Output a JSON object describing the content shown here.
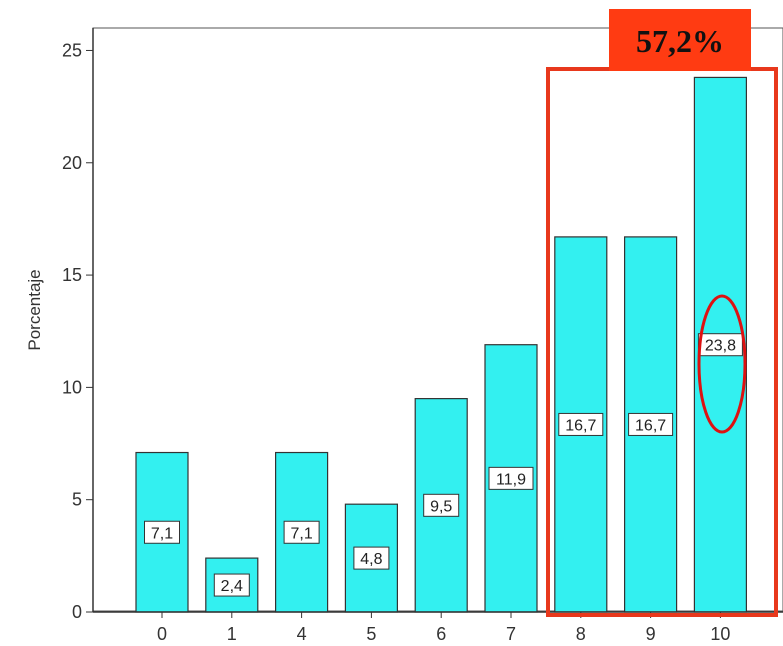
{
  "chart_data": {
    "type": "bar",
    "ylabel": "Porcentaje",
    "xlabel": "",
    "title": "",
    "categories": [
      "0",
      "1",
      "4",
      "5",
      "6",
      "7",
      "8",
      "9",
      "10"
    ],
    "values": [
      7.1,
      2.4,
      7.1,
      4.8,
      9.5,
      11.9,
      16.7,
      16.7,
      23.8
    ],
    "data_labels": [
      "7,1",
      "2,4",
      "7,1",
      "4,8",
      "9,5",
      "11,9",
      "16,7",
      "16,7",
      "23,8"
    ],
    "ylim": [
      0,
      26
    ],
    "yticks": [
      0,
      5,
      10,
      15,
      20,
      25
    ],
    "ytick_labels": [
      "0",
      "5",
      "10",
      "15",
      "20",
      "25"
    ],
    "grid": false,
    "bar_color": "#33f0f0",
    "bar_edge_color": "#333333"
  },
  "annotation": {
    "callout_label": "57,2%",
    "callout_color": "#ff3b12",
    "highlight_box_color": "#e8381c",
    "highlight_categories": [
      "8",
      "9",
      "10"
    ],
    "circled_category": "10",
    "circle_color": "#dd1111"
  }
}
